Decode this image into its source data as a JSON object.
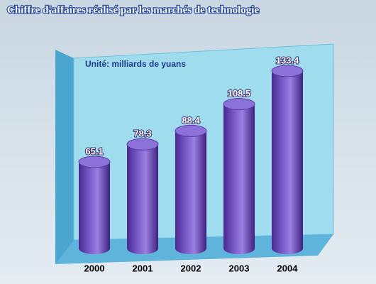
{
  "chart_data": {
    "type": "bar",
    "title": "Chiffre d'affaires réalisé par les marchés de technologie",
    "subtitle": "Unité: milliards de yuans",
    "categories": [
      "2000",
      "2001",
      "2002",
      "2003",
      "2004"
    ],
    "values": [
      65.1,
      78.3,
      88.4,
      108.5,
      133.4
    ],
    "color": "#6a44b8"
  }
}
